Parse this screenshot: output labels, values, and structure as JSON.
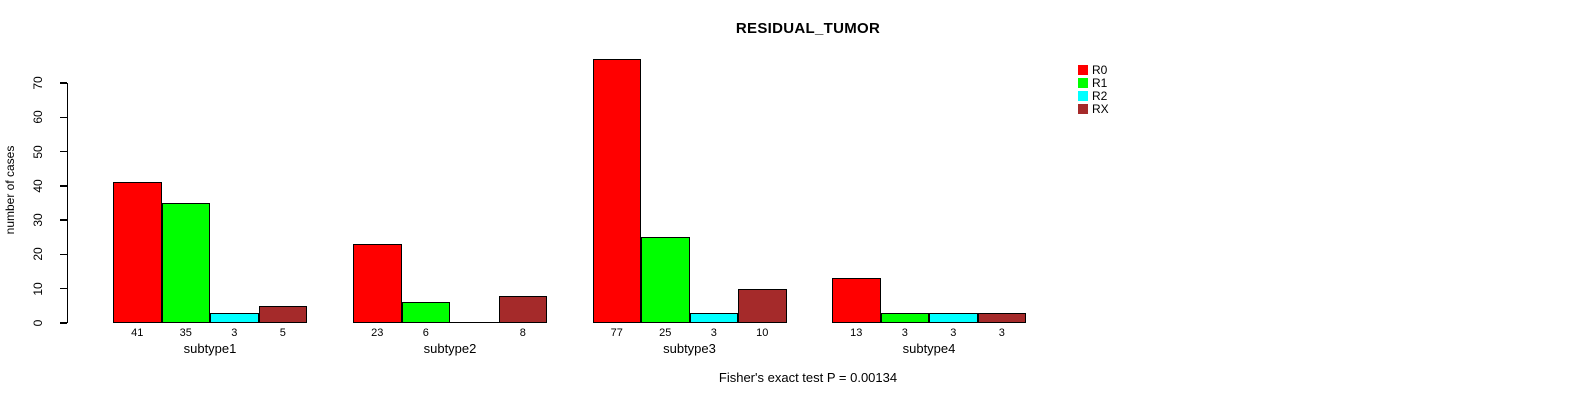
{
  "chart": {
    "title": "RESIDUAL_TUMOR",
    "ylabel": "number of cases",
    "caption": "Fisher's exact test P = 0.00134"
  },
  "chart_data": {
    "type": "bar",
    "title": "RESIDUAL_TUMOR",
    "xlabel": "",
    "ylabel": "number of cases",
    "categories": [
      "subtype1",
      "subtype2",
      "subtype3",
      "subtype4"
    ],
    "series": [
      {
        "name": "R0",
        "color": "#FF0000",
        "values": [
          41,
          23,
          77,
          13
        ]
      },
      {
        "name": "R1",
        "color": "#00FF00",
        "values": [
          35,
          6,
          25,
          3
        ]
      },
      {
        "name": "R2",
        "color": "#00FFFF",
        "values": [
          3,
          0,
          3,
          3
        ]
      },
      {
        "name": "RX",
        "color": "#A52A2A",
        "values": [
          5,
          8,
          10,
          3
        ]
      }
    ],
    "ylim": [
      0,
      70
    ],
    "yticks": [
      0,
      10,
      20,
      30,
      40,
      50,
      60,
      70
    ],
    "bar_value_labels_shown": true,
    "zero_values_hidden_labels": true,
    "grid": false,
    "legend_position": "top-right",
    "annotation": "Fisher's exact test P = 0.00134"
  },
  "legend": {
    "items": [
      {
        "label": "R0",
        "color": "#FF0000"
      },
      {
        "label": "R1",
        "color": "#00FF00"
      },
      {
        "label": "R2",
        "color": "#00FFFF"
      },
      {
        "label": "RX",
        "color": "#A52A2A"
      }
    ]
  }
}
